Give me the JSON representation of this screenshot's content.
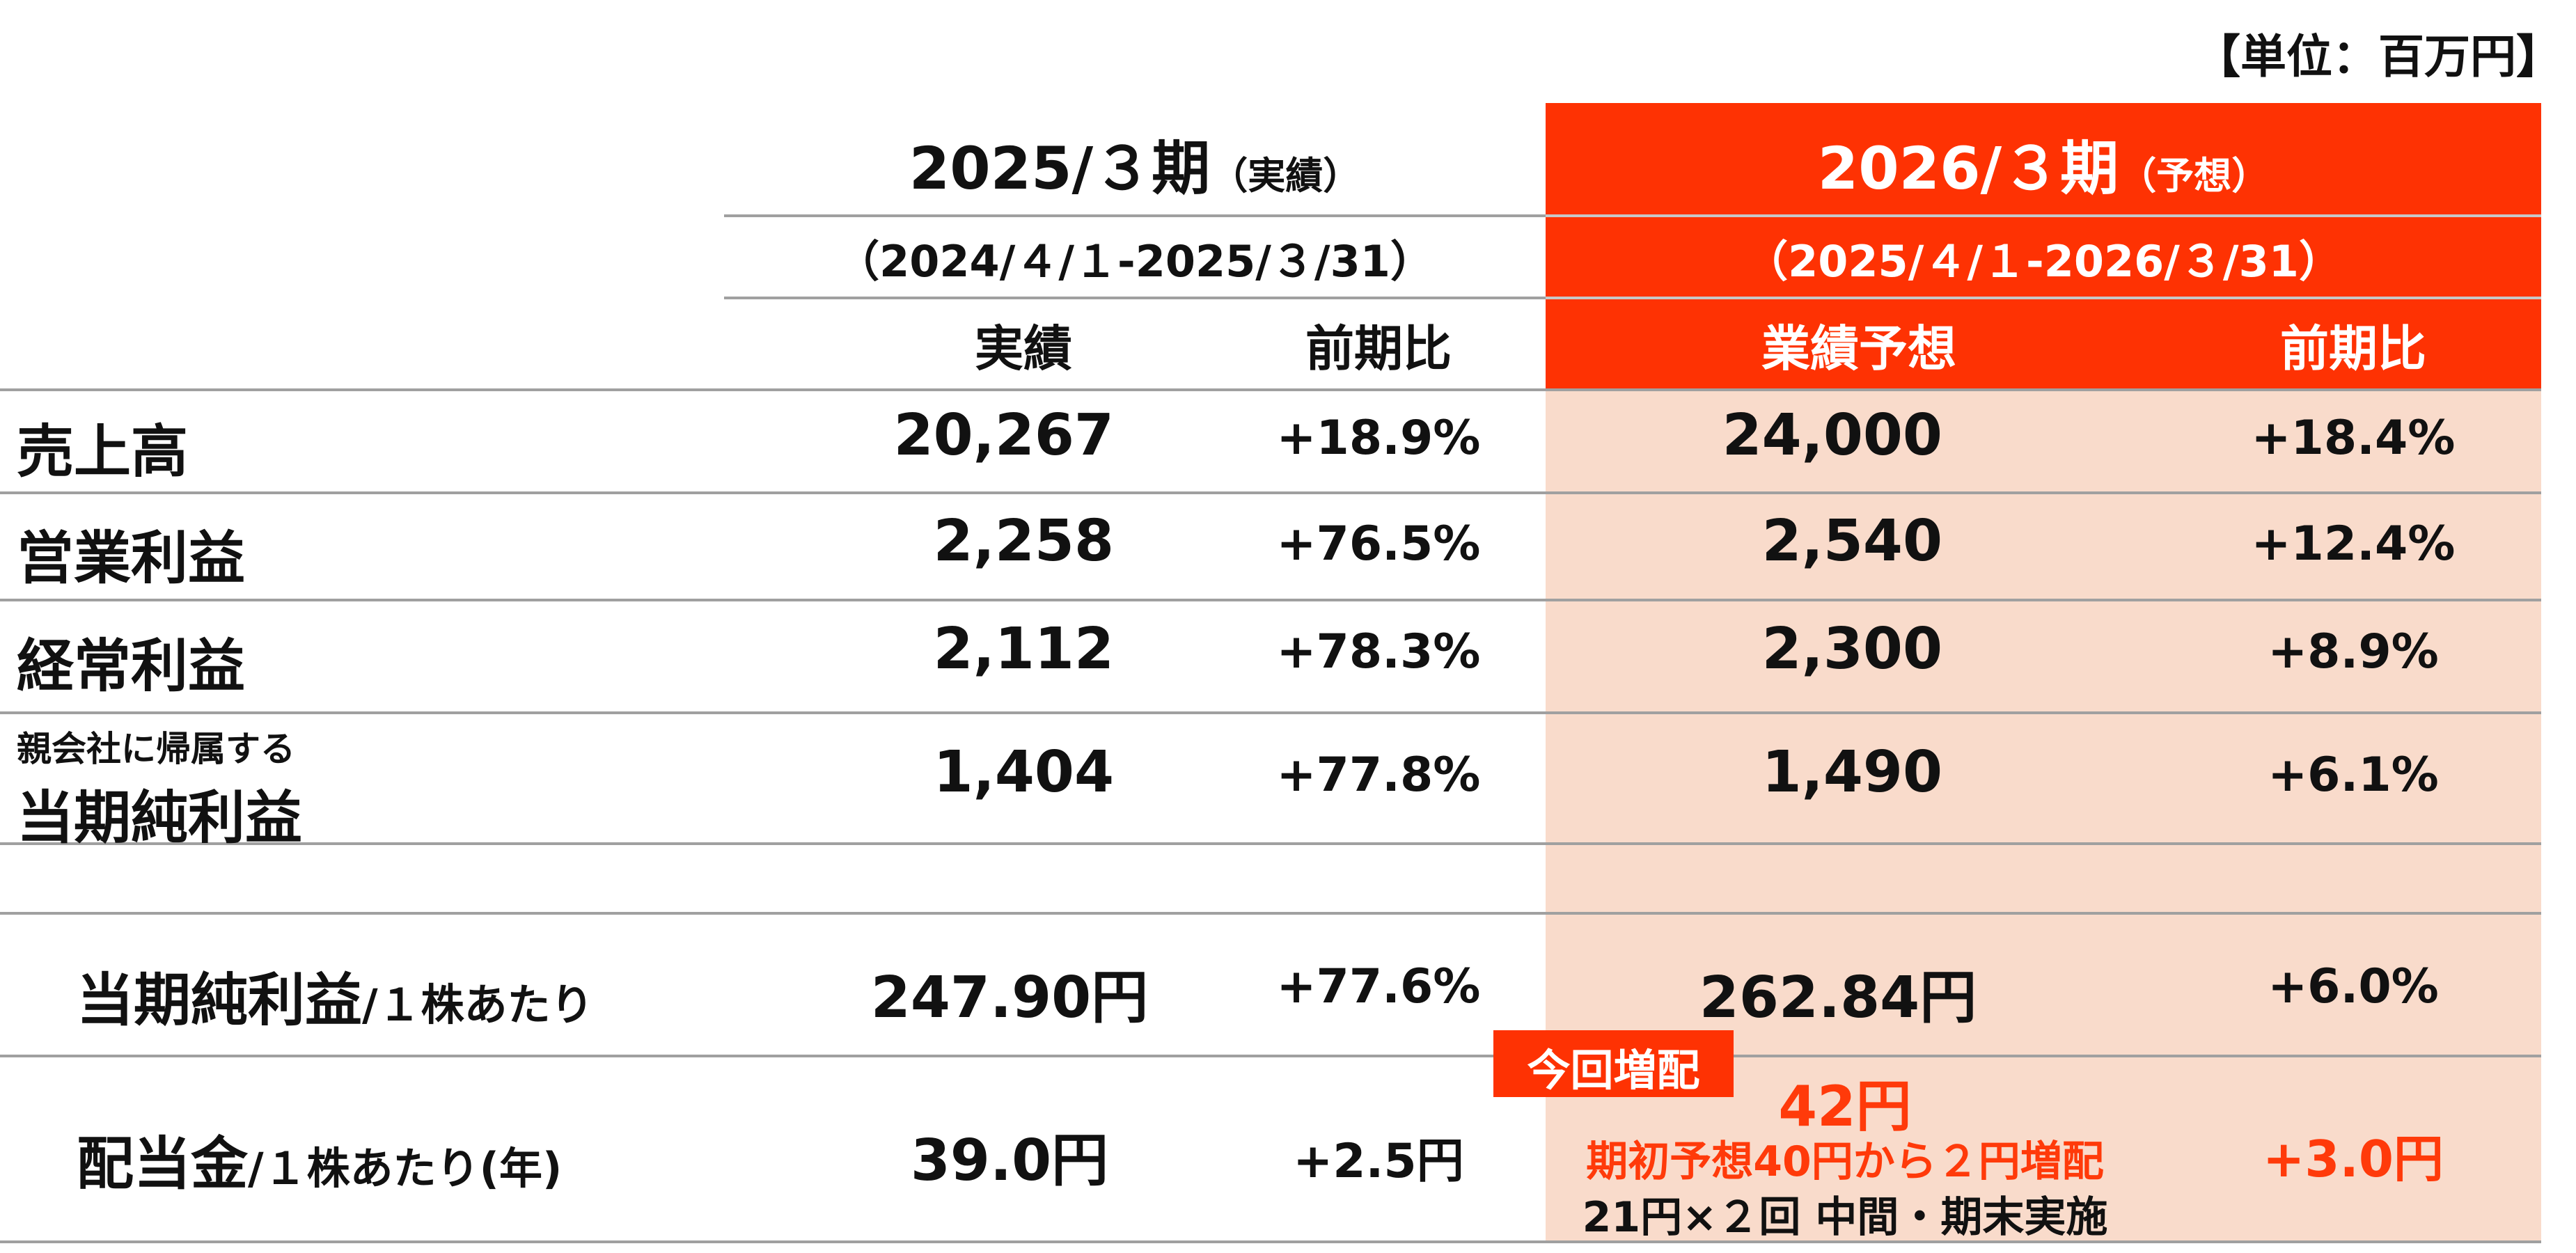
{
  "unit_label": "【単位：百万円】",
  "headers": {
    "fy2025": {
      "title": "2025/３期",
      "tag": "（実績）",
      "period": "（2024/４/１-2025/３/31）",
      "col_value": "実績",
      "col_change": "前期比"
    },
    "fy2026": {
      "title": "2026/３期",
      "tag": "（予想）",
      "period": "（2025/４/１-2026/３/31）",
      "col_value": "業績予想",
      "col_change": "前期比"
    }
  },
  "rows": [
    {
      "label": "売上高",
      "v2025": "20,267",
      "c2025": "+18.9%",
      "v2026": "24,000",
      "c2026": "+18.4%"
    },
    {
      "label": "営業利益",
      "v2025": "2,258",
      "c2025": "+76.5%",
      "v2026": "2,540",
      "c2026": "+12.4%"
    },
    {
      "label": "経常利益",
      "v2025": "2,112",
      "c2025": "+78.3%",
      "v2026": "2,300",
      "c2026": "+8.9%"
    },
    {
      "label_small": "親会社に帰属する",
      "label": "当期純利益",
      "v2025": "1,404",
      "c2025": "+77.8%",
      "v2026": "1,490",
      "c2026": "+6.1%"
    }
  ],
  "eps": {
    "label": "当期純利益",
    "suffix": "/１株あたり",
    "v2025": "247.90円",
    "c2025": "+77.6%",
    "v2026": "262.84円",
    "c2026": "+6.0%"
  },
  "dividend": {
    "label": "配当金",
    "suffix": "/１株あたり(年)",
    "v2025": "39.0円",
    "c2025": "+2.5円",
    "badge": "今回増配",
    "v2026": "42円",
    "note": "期初予想40円から２円増配",
    "detail": "21円×２回 中間・期末実施",
    "c2026": "+3.0円"
  },
  "colors": {
    "accent": "#fe3203",
    "highlight_bg": "#f9dbcb"
  }
}
